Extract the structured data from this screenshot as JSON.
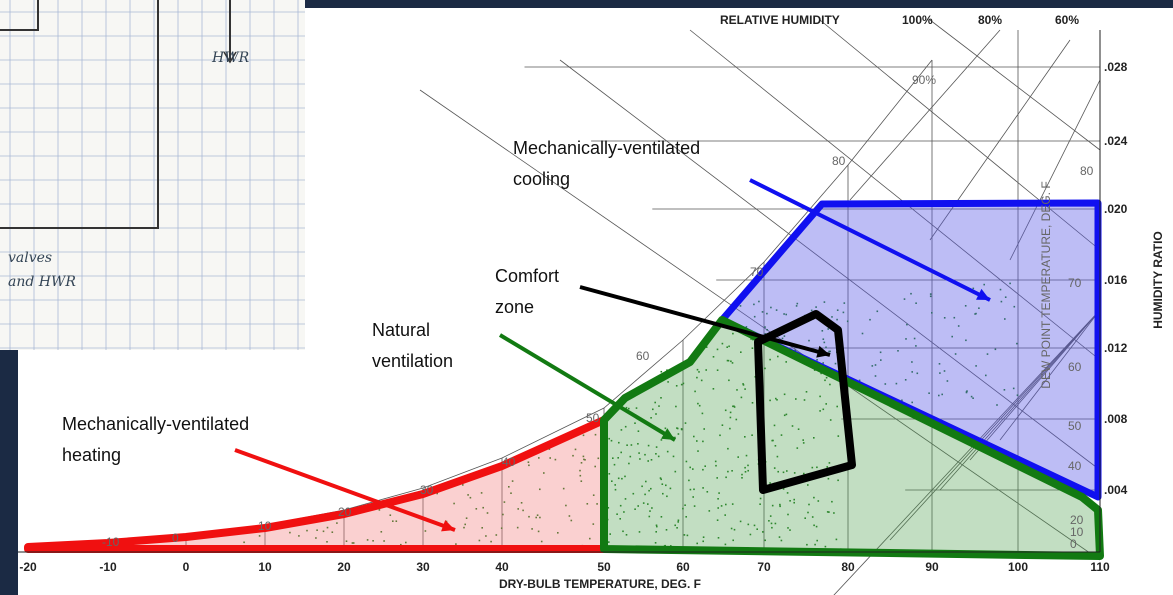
{
  "sketch": {
    "labels": [
      "HWR",
      "valves",
      "and HWR"
    ]
  },
  "chart": {
    "top_label": "RELATIVE HUMIDITY",
    "rh_labels": [
      "100%",
      "80%",
      "60%"
    ],
    "rh_inner": "90%",
    "x_title": "DRY-BULB TEMPERATURE, DEG. F",
    "y_title": "HUMIDITY RATIO",
    "dew_point_title": "DEW POINT TEMPERATURE, DEG. F",
    "x_ticks": [
      "-20",
      "-10",
      "0",
      "10",
      "20",
      "30",
      "40",
      "50",
      "60",
      "70",
      "80",
      "90",
      "100",
      "110"
    ],
    "y_ticks": [
      ".028",
      ".024",
      ".020",
      ".016",
      ".012",
      ".008",
      ".004"
    ],
    "dew_labels_curve": [
      "80",
      "70",
      "60",
      "50",
      "40",
      "30",
      "20",
      "10",
      "0",
      "-10"
    ],
    "dew_labels_right": [
      "80",
      "70",
      "60",
      "50",
      "40",
      "20",
      "10",
      "0"
    ]
  },
  "annotations": [
    {
      "lines": [
        "Mechanically-ventilated",
        "cooling"
      ]
    },
    {
      "lines": [
        "Comfort",
        "zone"
      ]
    },
    {
      "lines": [
        "Natural",
        "ventilation"
      ]
    },
    {
      "lines": [
        "Mechanically-ventilated",
        "heating"
      ]
    }
  ]
}
